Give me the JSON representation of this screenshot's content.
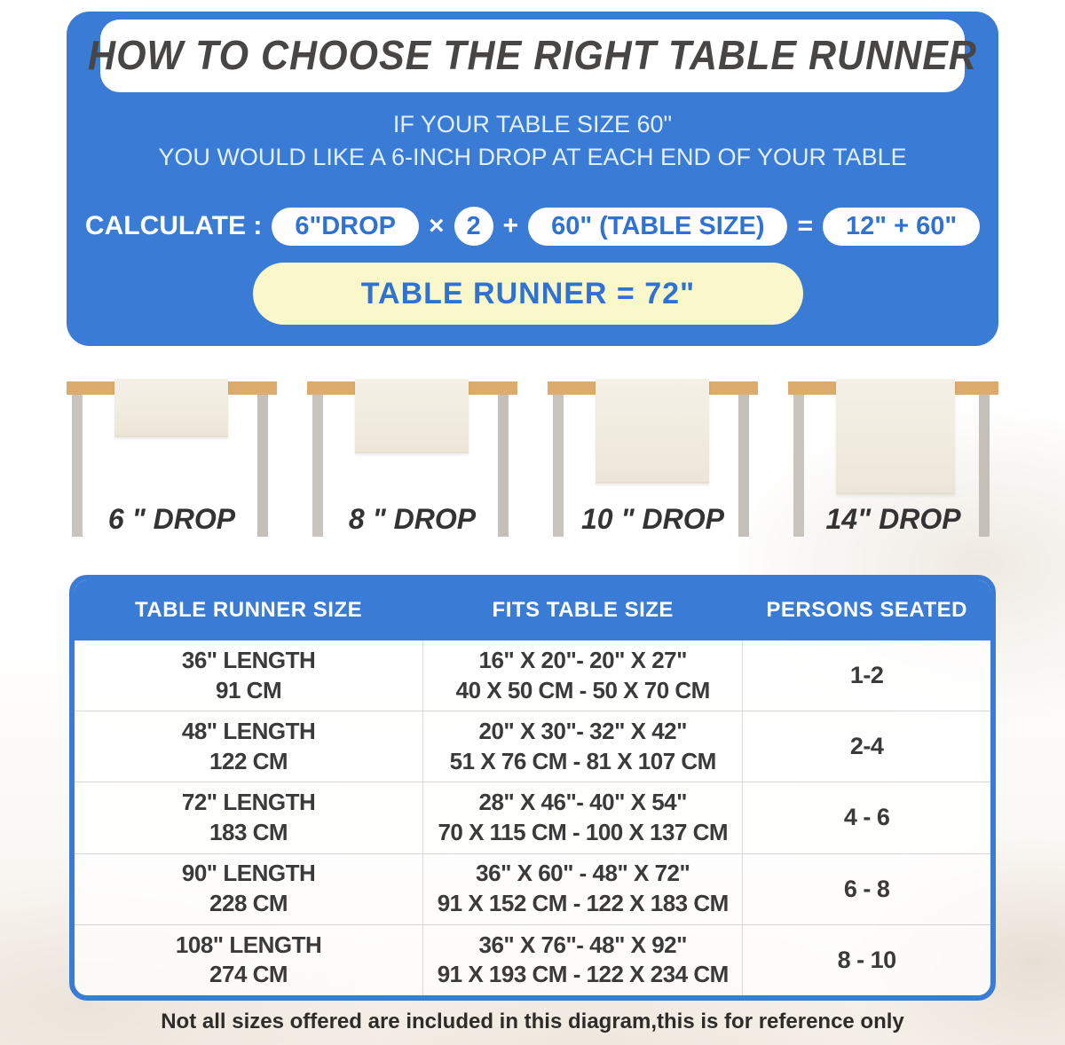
{
  "header": {
    "title": "HOW TO CHOOSE THE RIGHT TABLE RUNNER",
    "subtitle_line1": "IF YOUR TABLE SIZE 60\"",
    "subtitle_line2": "YOU WOULD LIKE A 6-INCH DROP AT EACH END OF YOUR TABLE",
    "calc": {
      "label": "CALCULATE :",
      "drop_pill": "6\"DROP",
      "times": "×",
      "multiplier": "2",
      "plus": "+",
      "table_size_pill": "60\"  (TABLE SIZE)",
      "equals": "=",
      "result_pill": "12\" + 60\"",
      "final_result": "TABLE RUNNER = 72\""
    }
  },
  "diagrams": [
    {
      "label": "6 \" DROP"
    },
    {
      "label": "8 \" DROP"
    },
    {
      "label": "10 \" DROP"
    },
    {
      "label": "14\" DROP"
    }
  ],
  "size_table": {
    "headers": [
      "TABLE RUNNER SIZE",
      "FITS TABLE SIZE",
      "PERSONS SEATED"
    ],
    "rows": [
      {
        "size_in": "36\" LENGTH",
        "size_cm": "91 CM",
        "fits_in": "16\" X 20\"- 20\" X 27\"",
        "fits_cm": "40 X 50 CM - 50 X 70 CM",
        "persons": "1-2"
      },
      {
        "size_in": "48\" LENGTH",
        "size_cm": "122 CM",
        "fits_in": "20\" X 30\"- 32\" X 42\"",
        "fits_cm": "51 X 76 CM - 81 X 107 CM",
        "persons": "2-4"
      },
      {
        "size_in": "72\" LENGTH",
        "size_cm": "183 CM",
        "fits_in": "28\" X 46\"- 40\" X 54\"",
        "fits_cm": "70 X 115 CM - 100 X 137 CM",
        "persons": "4 - 6"
      },
      {
        "size_in": "90\" LENGTH",
        "size_cm": "228 CM",
        "fits_in": "36\" X 60\" - 48\" X 72\"",
        "fits_cm": "91 X 152 CM - 122 X 183 CM",
        "persons": "6 - 8"
      },
      {
        "size_in": "108\" LENGTH",
        "size_cm": "274 CM",
        "fits_in": "36\" X 76\"- 48\" X 92\"",
        "fits_cm": "91 X 193 CM - 122 X 234 CM",
        "persons": "8 - 10"
      }
    ]
  },
  "footer_note": "Not all sizes offered are included in this diagram,this is for reference only",
  "colors": {
    "accent_blue": "#3a7bd5",
    "pill_text_blue": "#2f72d2",
    "result_yellow": "#faf8ca",
    "tabletop_tan": "#dcab6e",
    "leg_gray": "#cac4bf",
    "runner_cream": "#f2eee3",
    "title_text": "#474645",
    "body_text": "#3a3a3a"
  }
}
